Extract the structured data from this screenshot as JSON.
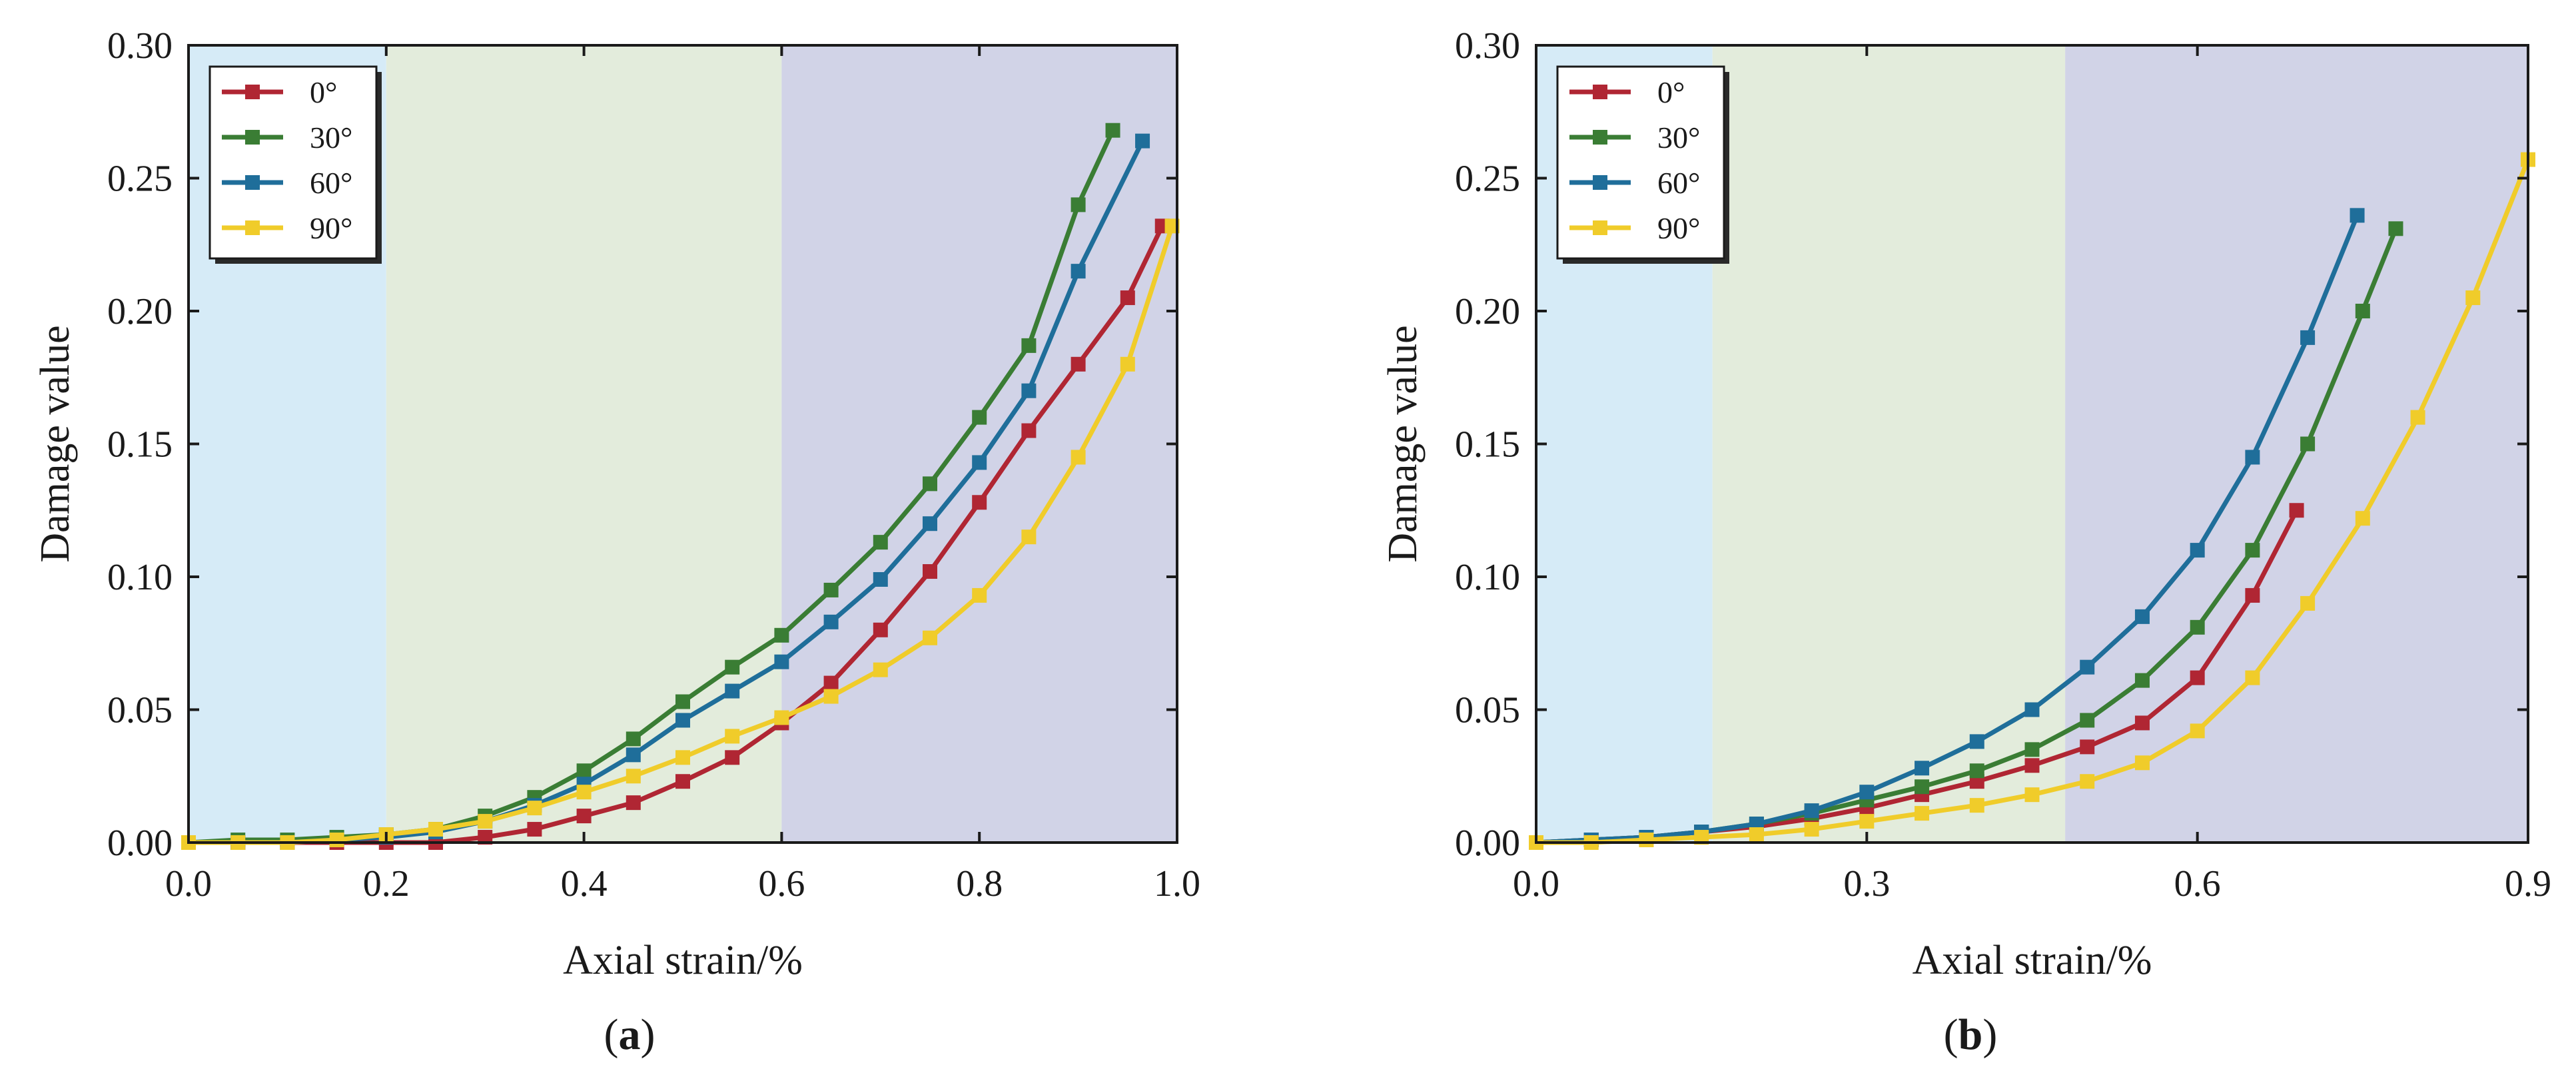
{
  "colors": {
    "zone1": "#d6ebf7",
    "zone2": "#e3ecdc",
    "zone3": "#d1d3e7",
    "series": {
      "0°": "#b02633",
      "30°": "#3a7d34",
      "60°": "#1f6e9a",
      "90°": "#f0cc2a"
    }
  },
  "chart_data": [
    {
      "type": "line",
      "panel_label": "a",
      "xlabel": "Axial strain/%",
      "ylabel": "Damage value",
      "xlim": [
        0,
        1.0
      ],
      "ylim": [
        0,
        0.3
      ],
      "xticks": [
        0.0,
        0.2,
        0.4,
        0.6,
        0.8,
        1.0
      ],
      "xtick_labels": [
        "0.0",
        "0.2",
        "0.4",
        "0.6",
        "0.8",
        "1.0"
      ],
      "yticks": [
        0.0,
        0.05,
        0.1,
        0.15,
        0.2,
        0.25,
        0.3
      ],
      "ytick_labels": [
        "0.00",
        "0.05",
        "0.10",
        "0.15",
        "0.20",
        "0.25",
        "0.30"
      ],
      "zones": [
        [
          0,
          0.2
        ],
        [
          0.2,
          0.6
        ],
        [
          0.6,
          1.0
        ]
      ],
      "legend": [
        "0°",
        "30°",
        "60°",
        "90°"
      ],
      "legend_position": "top-left",
      "series": [
        {
          "name": "0°",
          "x": [
            0.0,
            0.05,
            0.1,
            0.15,
            0.2,
            0.25,
            0.3,
            0.35,
            0.4,
            0.45,
            0.5,
            0.55,
            0.6,
            0.65,
            0.7,
            0.75,
            0.8,
            0.85,
            0.9,
            0.95,
            0.985
          ],
          "y": [
            0.0,
            0.0,
            0.0,
            0.0,
            0.0,
            0.0,
            0.002,
            0.005,
            0.01,
            0.015,
            0.023,
            0.032,
            0.045,
            0.06,
            0.08,
            0.102,
            0.128,
            0.155,
            0.18,
            0.205,
            0.232
          ]
        },
        {
          "name": "30°",
          "x": [
            0.0,
            0.05,
            0.1,
            0.15,
            0.2,
            0.25,
            0.3,
            0.35,
            0.4,
            0.45,
            0.5,
            0.55,
            0.6,
            0.65,
            0.7,
            0.75,
            0.8,
            0.85,
            0.9,
            0.935
          ],
          "y": [
            0.0,
            0.001,
            0.001,
            0.002,
            0.003,
            0.005,
            0.01,
            0.017,
            0.027,
            0.039,
            0.053,
            0.066,
            0.078,
            0.095,
            0.113,
            0.135,
            0.16,
            0.187,
            0.24,
            0.268
          ]
        },
        {
          "name": "60°",
          "x": [
            0.0,
            0.05,
            0.1,
            0.15,
            0.2,
            0.25,
            0.3,
            0.35,
            0.4,
            0.45,
            0.5,
            0.55,
            0.6,
            0.65,
            0.7,
            0.75,
            0.8,
            0.85,
            0.9,
            0.965
          ],
          "y": [
            0.0,
            0.0,
            0.0,
            0.001,
            0.002,
            0.004,
            0.008,
            0.014,
            0.022,
            0.033,
            0.046,
            0.057,
            0.068,
            0.083,
            0.099,
            0.12,
            0.143,
            0.17,
            0.215,
            0.264
          ]
        },
        {
          "name": "90°",
          "x": [
            0.0,
            0.05,
            0.1,
            0.15,
            0.2,
            0.25,
            0.3,
            0.35,
            0.4,
            0.45,
            0.5,
            0.55,
            0.6,
            0.65,
            0.7,
            0.75,
            0.8,
            0.85,
            0.9,
            0.95,
            0.995
          ],
          "y": [
            0.0,
            0.0,
            0.0,
            0.001,
            0.003,
            0.005,
            0.008,
            0.013,
            0.019,
            0.025,
            0.032,
            0.04,
            0.047,
            0.055,
            0.065,
            0.077,
            0.093,
            0.115,
            0.145,
            0.18,
            0.232
          ]
        }
      ]
    },
    {
      "type": "line",
      "panel_label": "b",
      "xlabel": "Axial strain/%",
      "ylabel": "Damage value",
      "xlim": [
        0,
        0.9
      ],
      "ylim": [
        0,
        0.3
      ],
      "xticks": [
        0.0,
        0.3,
        0.6,
        0.9
      ],
      "xtick_labels": [
        "0.0",
        "0.3",
        "0.6",
        "0.9"
      ],
      "yticks": [
        0.0,
        0.05,
        0.1,
        0.15,
        0.2,
        0.25,
        0.3
      ],
      "ytick_labels": [
        "0.00",
        "0.05",
        "0.10",
        "0.15",
        "0.20",
        "0.25",
        "0.30"
      ],
      "zones": [
        [
          0,
          0.16
        ],
        [
          0.16,
          0.48
        ],
        [
          0.48,
          0.9
        ]
      ],
      "legend": [
        "0°",
        "30°",
        "60°",
        "90°"
      ],
      "legend_position": "top-left",
      "series": [
        {
          "name": "0°",
          "x": [
            0.0,
            0.05,
            0.1,
            0.15,
            0.2,
            0.25,
            0.3,
            0.35,
            0.4,
            0.45,
            0.5,
            0.55,
            0.6,
            0.65,
            0.69
          ],
          "y": [
            0.0,
            0.001,
            0.002,
            0.004,
            0.006,
            0.009,
            0.013,
            0.018,
            0.023,
            0.029,
            0.036,
            0.045,
            0.062,
            0.093,
            0.125
          ]
        },
        {
          "name": "30°",
          "x": [
            0.0,
            0.05,
            0.1,
            0.15,
            0.2,
            0.25,
            0.3,
            0.35,
            0.4,
            0.45,
            0.5,
            0.55,
            0.6,
            0.65,
            0.7,
            0.75,
            0.78
          ],
          "y": [
            0.0,
            0.001,
            0.002,
            0.004,
            0.007,
            0.011,
            0.016,
            0.021,
            0.027,
            0.035,
            0.046,
            0.061,
            0.081,
            0.11,
            0.15,
            0.2,
            0.231
          ]
        },
        {
          "name": "60°",
          "x": [
            0.0,
            0.05,
            0.1,
            0.15,
            0.2,
            0.25,
            0.3,
            0.35,
            0.4,
            0.45,
            0.5,
            0.55,
            0.6,
            0.65,
            0.7,
            0.745
          ],
          "y": [
            0.0,
            0.001,
            0.002,
            0.004,
            0.007,
            0.012,
            0.019,
            0.028,
            0.038,
            0.05,
            0.066,
            0.085,
            0.11,
            0.145,
            0.19,
            0.236
          ]
        },
        {
          "name": "90°",
          "x": [
            0.0,
            0.05,
            0.1,
            0.15,
            0.2,
            0.25,
            0.3,
            0.35,
            0.4,
            0.45,
            0.5,
            0.55,
            0.6,
            0.65,
            0.7,
            0.75,
            0.8,
            0.85,
            0.9
          ],
          "y": [
            0.0,
            0.0,
            0.001,
            0.002,
            0.003,
            0.005,
            0.008,
            0.011,
            0.014,
            0.018,
            0.023,
            0.03,
            0.042,
            0.062,
            0.09,
            0.122,
            0.16,
            0.205,
            0.257
          ]
        }
      ]
    }
  ]
}
